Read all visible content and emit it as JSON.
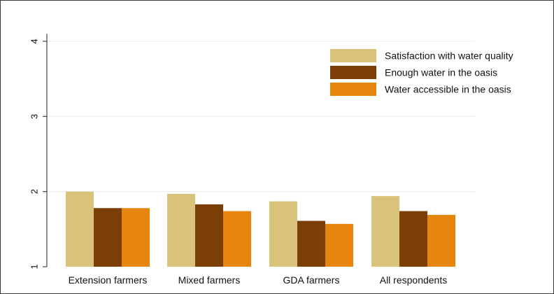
{
  "chart_data": {
    "type": "bar",
    "categories": [
      "Extension farmers",
      "Mixed farmers",
      "GDA farmers",
      "All respondents"
    ],
    "series": [
      {
        "name": "Satisfaction with water quality",
        "color": "#d9c27a",
        "values": [
          2.0,
          1.97,
          1.87,
          1.94
        ]
      },
      {
        "name": "Enough water in the oasis",
        "color": "#7a3e06",
        "values": [
          1.78,
          1.83,
          1.61,
          1.74
        ]
      },
      {
        "name": "Water accessible in the oasis",
        "color": "#e6860f",
        "values": [
          1.78,
          1.74,
          1.57,
          1.69
        ]
      }
    ],
    "yticks": [
      1,
      2,
      3,
      4
    ],
    "ytick_labels": [
      "1",
      "2",
      "3",
      "4"
    ],
    "ylim": [
      1,
      4.1
    ],
    "grid": true,
    "legend_position": "top-right"
  }
}
